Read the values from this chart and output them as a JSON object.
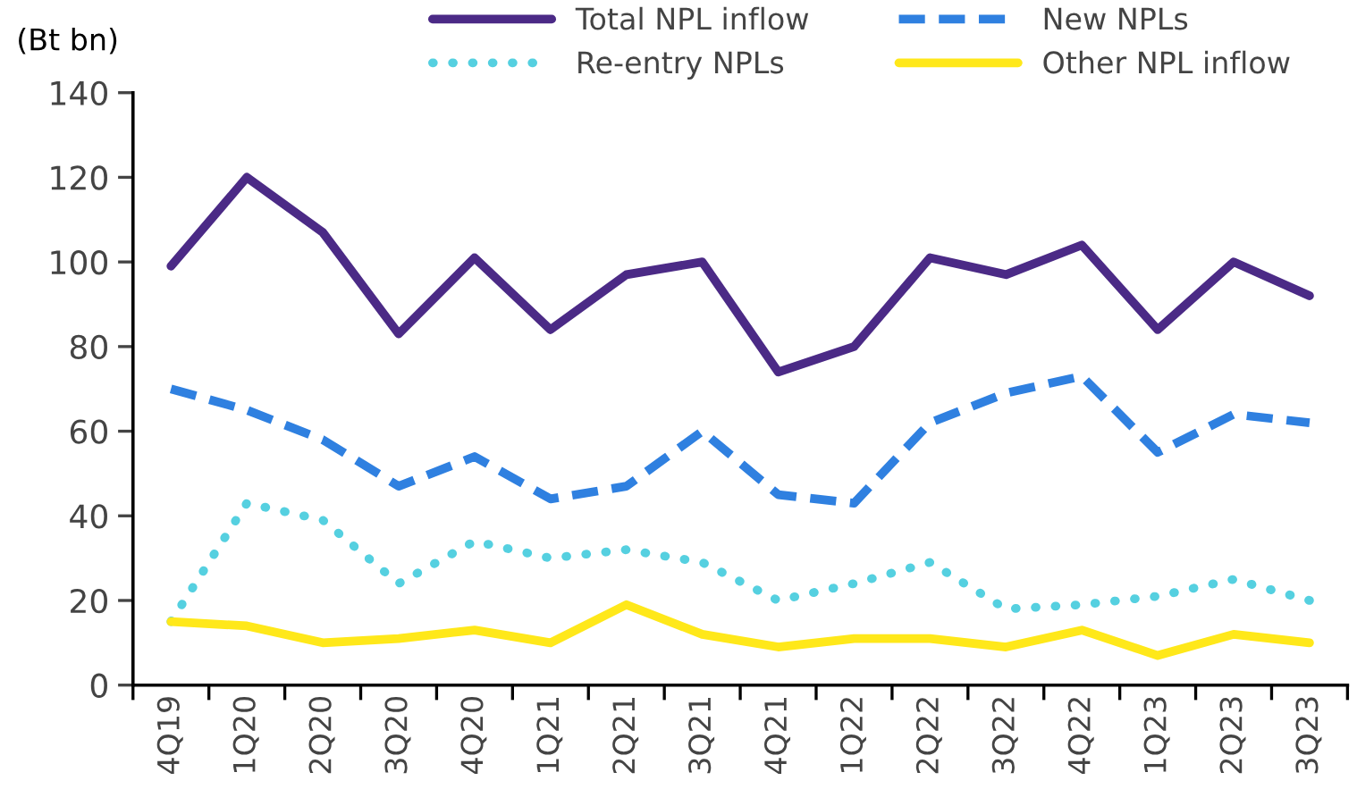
{
  "chart_data": {
    "type": "line",
    "ylabel": "(Bt bn)",
    "categories": [
      "4Q19",
      "1Q20",
      "2Q20",
      "3Q20",
      "4Q20",
      "1Q21",
      "2Q21",
      "3Q21",
      "4Q21",
      "1Q22",
      "2Q22",
      "3Q22",
      "4Q22",
      "1Q23",
      "2Q23",
      "3Q23"
    ],
    "series": [
      {
        "name": "Total NPL inflow",
        "color": "#4b2a86",
        "line_style": "solid",
        "values": [
          99,
          120,
          107,
          83,
          101,
          84,
          97,
          100,
          74,
          80,
          101,
          97,
          104,
          84,
          100,
          92
        ]
      },
      {
        "name": "New NPLs",
        "color": "#2f80e0",
        "line_style": "dashed",
        "values": [
          70,
          65,
          58,
          47,
          54,
          44,
          47,
          60,
          45,
          43,
          62,
          69,
          73,
          55,
          64,
          62
        ]
      },
      {
        "name": "Re-entry NPLs",
        "color": "#55d0e0",
        "line_style": "dotted",
        "values": [
          15,
          43,
          39,
          24,
          34,
          30,
          32,
          29,
          20,
          24,
          29,
          18,
          19,
          21,
          25,
          20
        ]
      },
      {
        "name": "Other NPL inflow",
        "color": "#ffe81a",
        "line_style": "solid",
        "values": [
          15,
          14,
          10,
          11,
          13,
          10,
          19,
          12,
          9,
          11,
          11,
          9,
          13,
          7,
          12,
          10
        ]
      }
    ],
    "ylim": [
      0,
      140
    ],
    "yticks": [
      0,
      20,
      40,
      60,
      80,
      100,
      120,
      140
    ],
    "grid": false,
    "legend": "top",
    "marker": "none"
  }
}
